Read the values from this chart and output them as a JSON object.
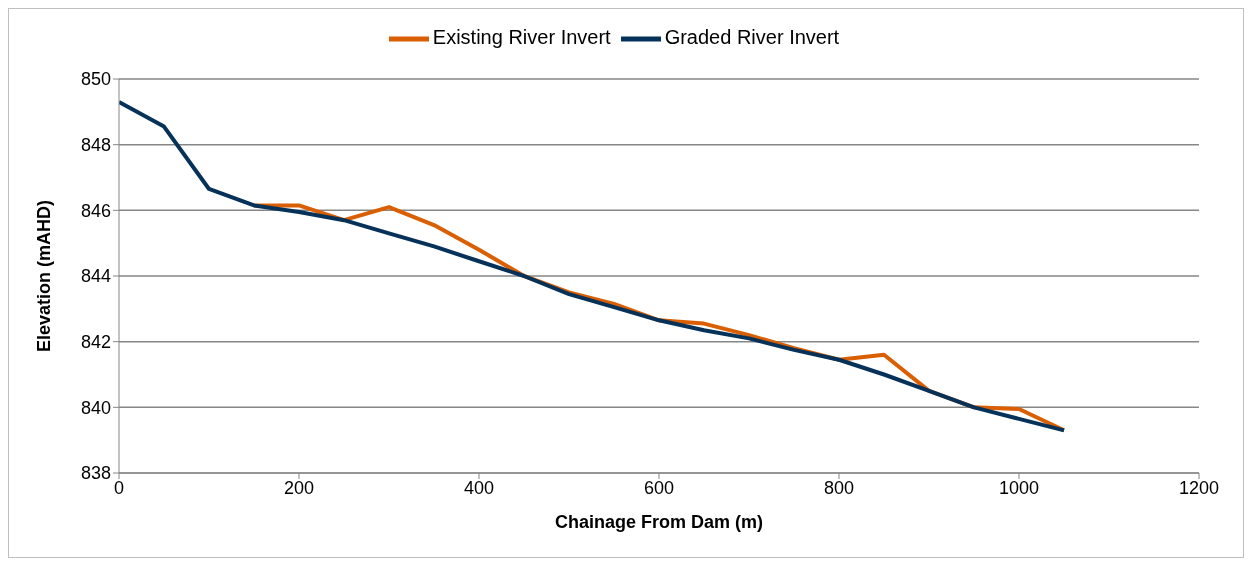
{
  "chart_data": {
    "type": "line",
    "xlabel": "Chainage From Dam (m)",
    "ylabel": "Elevation (mAHD)",
    "x": [
      0,
      50,
      100,
      150,
      200,
      250,
      300,
      350,
      400,
      450,
      500,
      550,
      600,
      650,
      700,
      750,
      800,
      850,
      900,
      950,
      1000,
      1050
    ],
    "series": [
      {
        "name": "Existing River Invert",
        "color": "#d95f02",
        "values": [
          null,
          null,
          null,
          846.15,
          846.15,
          845.7,
          846.1,
          845.55,
          844.8,
          844.0,
          843.5,
          843.15,
          842.65,
          842.55,
          842.2,
          841.8,
          841.45,
          841.6,
          840.5,
          840.0,
          839.95,
          839.3
        ]
      },
      {
        "name": "Graded River Invert",
        "color": "#06325a",
        "values": [
          849.3,
          848.55,
          846.65,
          846.15,
          845.95,
          845.7,
          845.3,
          844.9,
          844.45,
          844.0,
          843.45,
          843.05,
          842.65,
          842.35,
          842.1,
          841.75,
          841.45,
          841.0,
          840.5,
          840.0,
          839.65,
          839.3
        ]
      }
    ],
    "xlim": [
      0,
      1200
    ],
    "xticks": [
      0,
      200,
      400,
      600,
      800,
      1000,
      1200
    ],
    "ylim": [
      838,
      850
    ],
    "yticks": [
      838,
      840,
      842,
      844,
      846,
      848,
      850
    ],
    "grid": "y",
    "legend": "top",
    "marker": "none",
    "line_style": "solid"
  }
}
